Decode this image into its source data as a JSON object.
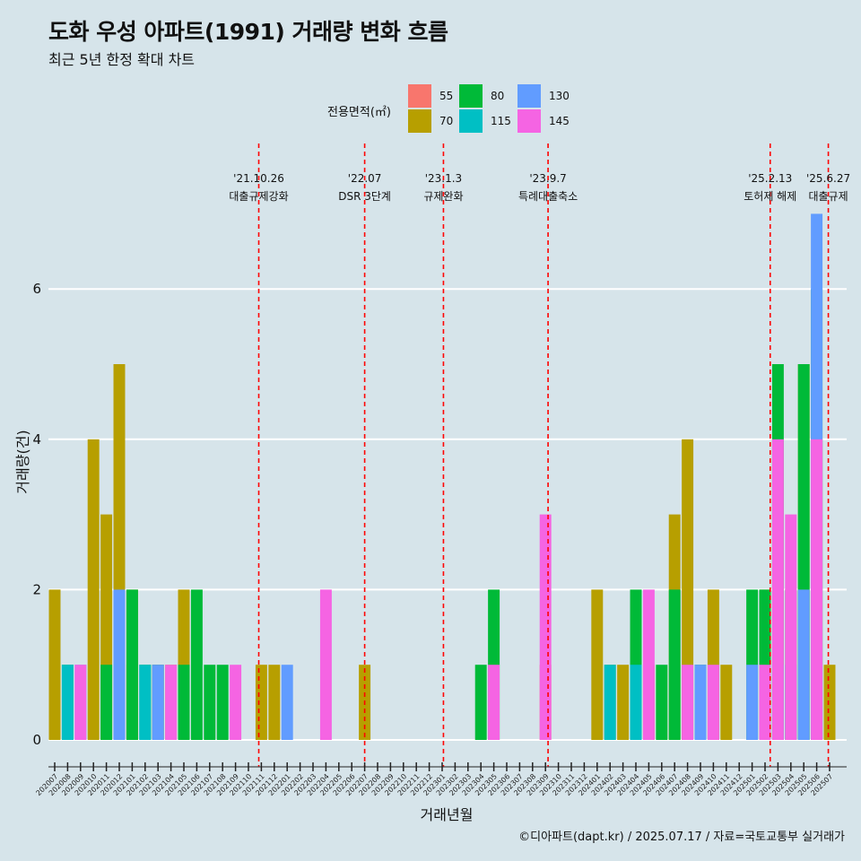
{
  "header": {
    "title": "도화 우성 아파트(1991) 거래량 변화 흐름",
    "subtitle": "최근 5년 한정 확대 차트"
  },
  "caption": "©디아파트(dapt.kr) / 2025.07.17 / 자료=국토교통부 실거래가",
  "legend": {
    "title": "전용면적(㎡)",
    "items": [
      {
        "label": "55",
        "color": "#F8766D"
      },
      {
        "label": "70",
        "color": "#B79F00"
      },
      {
        "label": "80",
        "color": "#00BA38"
      },
      {
        "label": "115",
        "color": "#00BFC4"
      },
      {
        "label": "130",
        "color": "#619CFF"
      },
      {
        "label": "145",
        "color": "#F564E3"
      }
    ]
  },
  "chart_data": {
    "type": "bar",
    "xlabel": "거래년월",
    "ylabel": "거래량(건)",
    "ylim": [
      -0.35,
      7.0
    ],
    "yticks": [
      0,
      2,
      4,
      6
    ],
    "x_start": "202007",
    "x_end": "202507",
    "x_tick_labels": [
      "202007",
      "202008",
      "202009",
      "202010",
      "202011",
      "202012",
      "202101",
      "202102",
      "202103",
      "202104",
      "202105",
      "202106",
      "202107",
      "202108",
      "202109",
      "202110",
      "202111",
      "202112",
      "202201",
      "202202",
      "202203",
      "202204",
      "202205",
      "202206",
      "202207",
      "202208",
      "202209",
      "202210",
      "202211",
      "202212",
      "202301",
      "202302",
      "202303",
      "202304",
      "202305",
      "202306",
      "202307",
      "202308",
      "202309",
      "202310",
      "202311",
      "202312",
      "202401",
      "202402",
      "202403",
      "202404",
      "202405",
      "202406",
      "202407",
      "202408",
      "202409",
      "202410",
      "202411",
      "202412",
      "202501",
      "202502",
      "202503",
      "202504",
      "202505",
      "202506",
      "202507"
    ],
    "series": [
      {
        "name": "55",
        "color": "#F8766D",
        "points": [
          [
            "202007",
            1
          ],
          [
            "202012",
            1
          ],
          [
            "202101",
            1
          ],
          [
            "202103",
            1
          ],
          [
            "202309",
            1
          ]
        ]
      },
      {
        "name": "70",
        "color": "#B79F00",
        "points": [
          [
            "202007",
            2
          ],
          [
            "202010",
            4
          ],
          [
            "202011",
            3
          ],
          [
            "202012",
            5
          ],
          [
            "202101",
            2
          ],
          [
            "202104",
            1
          ],
          [
            "202105",
            2
          ],
          [
            "202111",
            1
          ],
          [
            "202112",
            1
          ],
          [
            "202207",
            1
          ],
          [
            "202401",
            2
          ],
          [
            "202402",
            1
          ],
          [
            "202403",
            1
          ],
          [
            "202405",
            1
          ],
          [
            "202407",
            3
          ],
          [
            "202408",
            4
          ],
          [
            "202410",
            2
          ],
          [
            "202411",
            1
          ],
          [
            "202502",
            2
          ],
          [
            "202503",
            4
          ],
          [
            "202505",
            5
          ],
          [
            "202506",
            4
          ],
          [
            "202507",
            1
          ]
        ]
      },
      {
        "name": "80",
        "color": "#00BA38",
        "points": [
          [
            "202008",
            1
          ],
          [
            "202011",
            1
          ],
          [
            "202101",
            2
          ],
          [
            "202102",
            1
          ],
          [
            "202103",
            1
          ],
          [
            "202105",
            1
          ],
          [
            "202106",
            2
          ],
          [
            "202107",
            1
          ],
          [
            "202108",
            1
          ],
          [
            "202304",
            1
          ],
          [
            "202305",
            2
          ],
          [
            "202404",
            2
          ],
          [
            "202406",
            1
          ],
          [
            "202407",
            2
          ],
          [
            "202409",
            1
          ],
          [
            "202501",
            2
          ],
          [
            "202502",
            2
          ],
          [
            "202503",
            5
          ],
          [
            "202504",
            2
          ],
          [
            "202505",
            5
          ],
          [
            "202506",
            6
          ]
        ]
      },
      {
        "name": "115",
        "color": "#00BFC4",
        "points": [
          [
            "202008",
            1
          ],
          [
            "202102",
            1
          ],
          [
            "202402",
            1
          ],
          [
            "202404",
            1
          ],
          [
            "202503",
            1
          ],
          [
            "202504",
            1
          ]
        ]
      },
      {
        "name": "130",
        "color": "#619CFF",
        "points": [
          [
            "202009",
            1
          ],
          [
            "202012",
            2
          ],
          [
            "202103",
            1
          ],
          [
            "202201",
            1
          ],
          [
            "202409",
            1
          ],
          [
            "202501",
            1
          ],
          [
            "202505",
            2
          ],
          [
            "202506",
            7
          ]
        ]
      },
      {
        "name": "145",
        "color": "#F564E3",
        "points": [
          [
            "202009",
            1
          ],
          [
            "202104",
            1
          ],
          [
            "202109",
            1
          ],
          [
            "202204",
            2
          ],
          [
            "202305",
            1
          ],
          [
            "202309",
            3
          ],
          [
            "202405",
            2
          ],
          [
            "202408",
            1
          ],
          [
            "202410",
            1
          ],
          [
            "202502",
            1
          ],
          [
            "202503",
            4
          ],
          [
            "202504",
            3
          ],
          [
            "202506",
            4
          ]
        ]
      }
    ],
    "annotations": [
      {
        "x": "202110.8",
        "date": "'21.10.26",
        "label": "대출규제강화"
      },
      {
        "x": "202207",
        "date": "'22.07",
        "label": "DSR 3단계"
      },
      {
        "x": "202301.1",
        "date": "'23.1.3",
        "label": "규제완화"
      },
      {
        "x": "202309.2",
        "date": "'23.9.7",
        "label": "특례대출축소"
      },
      {
        "x": "202502.4",
        "date": "'25.2.13",
        "label": "토허제 해제"
      },
      {
        "x": "202506.9",
        "date": "'25.6.27",
        "label": "대출규제"
      }
    ]
  }
}
